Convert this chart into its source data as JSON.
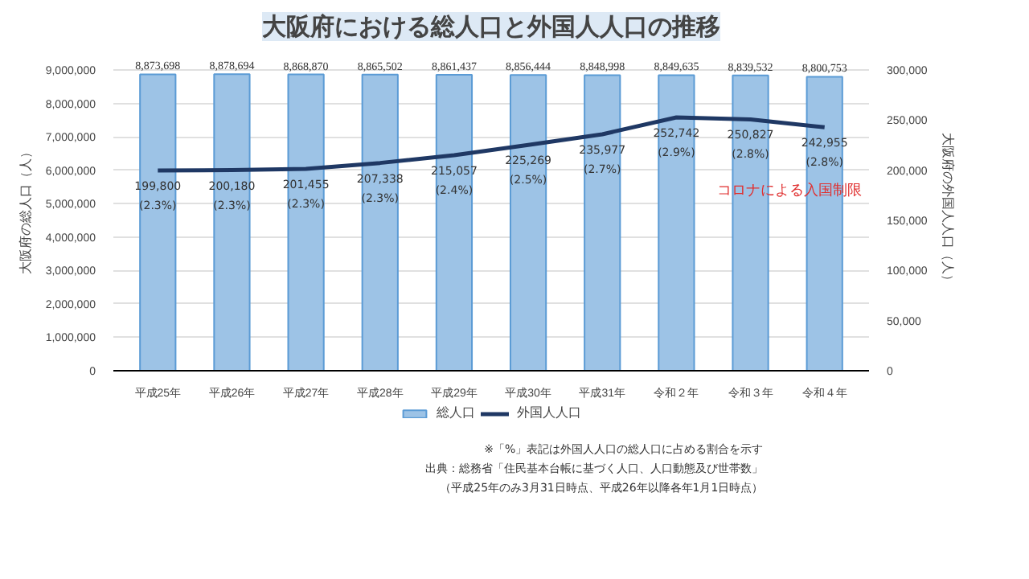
{
  "chart_data": {
    "type": "bar",
    "title": "大阪府における総人口と外国人人口の推移",
    "categories": [
      "平成25年",
      "平成26年",
      "平成27年",
      "平成28年",
      "平成29年",
      "平成30年",
      "平成31年",
      "令和２年",
      "令和３年",
      "令和４年"
    ],
    "series": [
      {
        "name": "総人口",
        "color": "#9dc3e6",
        "values": [
          8873698,
          8878694,
          8868870,
          8865502,
          8861437,
          8856444,
          8848998,
          8849635,
          8839532,
          8800753
        ],
        "value_labels": [
          "8,873,698",
          "8,878,694",
          "8,868,870",
          "8,865,502",
          "8,861,437",
          "8,856,444",
          "8,848,998",
          "8,849,635",
          "8,839,532",
          "8,800,753"
        ]
      },
      {
        "name": "外国人人口",
        "type": "line",
        "axis": "y2",
        "color": "#1f3864",
        "values": [
          199800,
          200180,
          201455,
          207338,
          215057,
          225269,
          235977,
          252742,
          250827,
          242955
        ],
        "value_labels": [
          "199,800\n(2.3%)",
          "200,180\n(2.3%)",
          "201,455\n(2.3%)",
          "207,338\n(2.3%)",
          "215,057\n(2.4%)",
          "225,269\n(2.5%)",
          "235,977\n(2.7%)",
          "252,742\n(2.9%)",
          "250,827\n(2.8%)",
          "242,955\n(2.8%)"
        ]
      }
    ],
    "ylabel": "大阪府の総人口（人）",
    "y2label": "大阪府の外国人人口（人）",
    "ylim": [
      0,
      9000000
    ],
    "yticks": [
      0,
      {
        "value": 1000000,
        "label": "1,000,000"
      },
      {
        "value": 2000000,
        "label": "2,000,000"
      },
      {
        "value": 3000000,
        "label": "3,000,000"
      },
      {
        "value": 4000000,
        "label": "4,000,000"
      },
      {
        "value": 5000000,
        "label": "5,000,000"
      },
      {
        "value": 6000000,
        "label": "6,000,000"
      },
      {
        "value": 7000000,
        "label": "7,000,000"
      },
      {
        "value": 8000000,
        "label": "8,000,000"
      },
      {
        "value": 9000000,
        "label": "9,000,000"
      }
    ],
    "y2lim": [
      0,
      300000
    ],
    "y2ticks": [
      0,
      {
        "value": 50000,
        "label": "50,000"
      },
      {
        "value": 100000,
        "label": "100,000"
      },
      {
        "value": 150000,
        "label": "150,000"
      },
      {
        "value": 200000,
        "label": "200,000"
      },
      {
        "value": 250000,
        "label": "250,000"
      },
      {
        "value": 300000,
        "label": "300,000"
      }
    ],
    "annotations": [
      "コロナによる入国制限",
      "※「%」表記は外国人人口の総人口に占める割合を示す",
      "出典：総務省「住民基本台帳に基づく人口、人口動態及び世帯数」",
      "（平成25年のみ3月31日時点、平成26年以降各年1月1日時点）"
    ],
    "grid": "y",
    "legend": "bottom"
  }
}
